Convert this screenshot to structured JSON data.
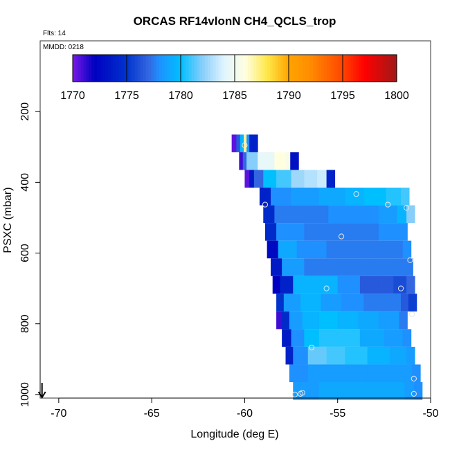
{
  "header": {
    "title": "ORCAS RF14vlonN CH4_QCLS_trop",
    "flts": "Flts: 14",
    "mmdd": "MMDD: 0218"
  },
  "colorbar": {
    "ticks": [
      "1770",
      "1775",
      "1780",
      "1785",
      "1790",
      "1795",
      "1800"
    ],
    "stops": [
      {
        "v": 1770,
        "c": "#7a19e8"
      },
      {
        "v": 1772,
        "c": "#0000c0"
      },
      {
        "v": 1775,
        "c": "#0033cc"
      },
      {
        "v": 1777,
        "c": "#3366e0"
      },
      {
        "v": 1778,
        "c": "#1e90ff"
      },
      {
        "v": 1780,
        "c": "#00bfff"
      },
      {
        "v": 1782,
        "c": "#87cefa"
      },
      {
        "v": 1784,
        "c": "#e0f4ff"
      },
      {
        "v": 1786,
        "c": "#ffffe0"
      },
      {
        "v": 1788,
        "c": "#ffe84a"
      },
      {
        "v": 1790,
        "c": "#ffa500"
      },
      {
        "v": 1792,
        "c": "#ff8c00"
      },
      {
        "v": 1795,
        "c": "#ff4500"
      },
      {
        "v": 1797,
        "c": "#ff0000"
      },
      {
        "v": 1800,
        "c": "#a01818"
      }
    ]
  },
  "chart_data": {
    "type": "heatmap",
    "title": "ORCAS RF14vlonN CH4_QCLS_trop",
    "xlabel": "Longitude (deg E)",
    "ylabel": "PSXC (mbar)",
    "xlim": [
      -71,
      -50
    ],
    "ylim": [
      1010,
      0
    ],
    "x_ticks": [
      -70,
      -65,
      -60,
      -55,
      -50
    ],
    "y_ticks": [
      200,
      400,
      600,
      800,
      1000
    ],
    "color_min": 1770,
    "color_max": 1800,
    "arrow_at": {
      "x": -70.9,
      "y": 1010
    },
    "rows": [
      {
        "p": 290,
        "cells": [
          [
            -60.7,
            1770.5
          ],
          [
            -60.45,
            1776.5
          ],
          [
            -60.25,
            1779.5
          ],
          [
            -60.05,
            1787
          ],
          [
            -59.9,
            1778
          ],
          [
            -59.75,
            1774
          ]
        ]
      },
      {
        "p": 340,
        "cells": [
          [
            -60.3,
            1771
          ],
          [
            -60.1,
            1777
          ],
          [
            -59.9,
            1782
          ],
          [
            -59.3,
            1784.5
          ],
          [
            -58.4,
            1786
          ],
          [
            -57.8,
            1785.5
          ],
          [
            -57.55,
            1773
          ]
        ]
      },
      {
        "p": 390,
        "cells": [
          [
            -60.0,
            1770.5
          ],
          [
            -59.75,
            1773.5
          ],
          [
            -59.5,
            1777
          ],
          [
            -59.0,
            1780
          ],
          [
            -58.3,
            1781
          ],
          [
            -57.5,
            1782.5
          ],
          [
            -56.8,
            1783
          ],
          [
            -56.1,
            1783.5
          ],
          [
            -55.6,
            1774
          ]
        ]
      },
      {
        "p": 440,
        "cells": [
          [
            -59.2,
            1774
          ],
          [
            -58.6,
            1778
          ],
          [
            -57.5,
            1778.5
          ],
          [
            -56.0,
            1779
          ],
          [
            -54.6,
            1779.5
          ],
          [
            -53.6,
            1780
          ],
          [
            -52.4,
            1780.5
          ],
          [
            -51.6,
            1781
          ]
        ]
      },
      {
        "p": 490,
        "cells": [
          [
            -59.0,
            1774.5
          ],
          [
            -58.4,
            1777.5
          ],
          [
            -57.0,
            1777.5
          ],
          [
            -55.5,
            1778
          ],
          [
            -54.2,
            1778
          ],
          [
            -52.8,
            1778.5
          ],
          [
            -51.8,
            1779.5
          ],
          [
            -51.3,
            1782
          ]
        ]
      },
      {
        "p": 540,
        "cells": [
          [
            -58.9,
            1774.5
          ],
          [
            -58.3,
            1778
          ],
          [
            -56.8,
            1777.5
          ],
          [
            -55.3,
            1777.5
          ],
          [
            -54.0,
            1777.5
          ],
          [
            -52.8,
            1778
          ],
          [
            -51.7,
            1778
          ]
        ]
      },
      {
        "p": 590,
        "cells": [
          [
            -58.8,
            1772.5
          ],
          [
            -58.2,
            1779
          ],
          [
            -57.2,
            1778
          ],
          [
            -55.6,
            1777.5
          ],
          [
            -54.0,
            1777.5
          ],
          [
            -52.6,
            1777.5
          ],
          [
            -51.5,
            1778
          ]
        ]
      },
      {
        "p": 640,
        "cells": [
          [
            -58.6,
            1773.5
          ],
          [
            -58.0,
            1778.5
          ],
          [
            -56.8,
            1777.5
          ],
          [
            -55.2,
            1777.5
          ],
          [
            -53.8,
            1777.5
          ],
          [
            -52.4,
            1777.5
          ],
          [
            -51.4,
            1777.5
          ]
        ]
      },
      {
        "p": 690,
        "cells": [
          [
            -58.5,
            1772
          ],
          [
            -58.1,
            1774
          ],
          [
            -57.4,
            1779.5
          ],
          [
            -56.3,
            1779.5
          ],
          [
            -55.0,
            1778
          ],
          [
            -53.8,
            1776.5
          ],
          [
            -52.8,
            1776.5
          ],
          [
            -52.0,
            1776
          ],
          [
            -51.3,
            1777
          ]
        ]
      },
      {
        "p": 740,
        "cells": [
          [
            -58.3,
            1775
          ],
          [
            -57.9,
            1778.5
          ],
          [
            -57.0,
            1779.5
          ],
          [
            -55.9,
            1778.5
          ],
          [
            -54.8,
            1778
          ],
          [
            -53.6,
            1777.5
          ],
          [
            -52.5,
            1777.5
          ],
          [
            -51.6,
            1776.5
          ],
          [
            -51.2,
            1775.5
          ]
        ]
      },
      {
        "p": 790,
        "cells": [
          [
            -58.3,
            1771
          ],
          [
            -58.0,
            1774.5
          ],
          [
            -57.6,
            1778.5
          ],
          [
            -56.9,
            1779.5
          ],
          [
            -56.0,
            1780
          ],
          [
            -55.0,
            1779.5
          ],
          [
            -53.9,
            1779
          ],
          [
            -52.8,
            1778.5
          ],
          [
            -51.7,
            1777.5
          ]
        ]
      },
      {
        "p": 840,
        "cells": [
          [
            -58.0,
            1773.5
          ],
          [
            -57.5,
            1778
          ],
          [
            -56.8,
            1780
          ],
          [
            -56.0,
            1780.5
          ],
          [
            -55.0,
            1780.5
          ],
          [
            -53.8,
            1779
          ],
          [
            -52.5,
            1778.5
          ],
          [
            -51.5,
            1778
          ]
        ]
      },
      {
        "p": 890,
        "cells": [
          [
            -57.8,
            1774
          ],
          [
            -57.4,
            1778
          ],
          [
            -56.6,
            1781.5
          ],
          [
            -55.6,
            1781
          ],
          [
            -54.6,
            1780.5
          ],
          [
            -53.4,
            1779.5
          ],
          [
            -52.2,
            1779
          ],
          [
            -51.3,
            1778.5
          ]
        ]
      },
      {
        "p": 940,
        "cells": [
          [
            -57.6,
            1778
          ],
          [
            -56.6,
            1778.5
          ],
          [
            -55.0,
            1778.5
          ],
          [
            -53.4,
            1778.5
          ],
          [
            -51.8,
            1778.5
          ],
          [
            -51.0,
            1778
          ]
        ]
      },
      {
        "p": 990,
        "cells": [
          [
            -57.4,
            1778.5
          ],
          [
            -56.0,
            1779
          ],
          [
            -54.4,
            1779
          ],
          [
            -52.8,
            1779
          ],
          [
            -51.4,
            1778.5
          ],
          [
            -50.9,
            1778
          ]
        ]
      }
    ],
    "markers": [
      {
        "x": -60.0,
        "y": 295
      },
      {
        "x": -54.0,
        "y": 433
      },
      {
        "x": -58.9,
        "y": 463
      },
      {
        "x": -52.3,
        "y": 463
      },
      {
        "x": -51.3,
        "y": 472
      },
      {
        "x": -54.8,
        "y": 553
      },
      {
        "x": -51.1,
        "y": 620
      },
      {
        "x": -55.6,
        "y": 700
      },
      {
        "x": -51.6,
        "y": 700
      },
      {
        "x": -51.0,
        "y": 773
      },
      {
        "x": -56.4,
        "y": 867
      },
      {
        "x": -50.9,
        "y": 955
      },
      {
        "x": -56.9,
        "y": 995
      },
      {
        "x": -57.0,
        "y": 998
      },
      {
        "x": -57.3,
        "y": 1000
      },
      {
        "x": -50.9,
        "y": 998
      }
    ]
  }
}
